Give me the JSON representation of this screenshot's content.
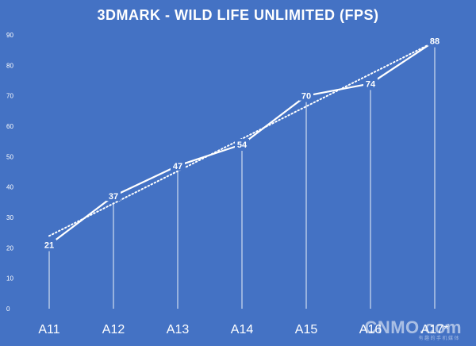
{
  "chart_data": {
    "type": "line",
    "title": "3DMARK - WILD LIFE UNLIMITED (FPS)",
    "categories": [
      "A11",
      "A12",
      "A13",
      "A14",
      "A15",
      "A16",
      "A17*"
    ],
    "series": [
      {
        "values": [
          21,
          37,
          47,
          54,
          70,
          74,
          88
        ]
      }
    ],
    "trendline": "linear",
    "ylim": [
      0,
      90
    ],
    "yticks": [
      0,
      10,
      20,
      30,
      40,
      50,
      60,
      70,
      80,
      90
    ],
    "grid": false,
    "data_labels": true
  },
  "watermark": {
    "text": "CNMO.com",
    "subtext": "有趣的手机媒体"
  },
  "colors": {
    "background": "#4472c4",
    "line": "#ffffff",
    "trendline": "#ffffff",
    "drop_lines": "#ffffff"
  }
}
